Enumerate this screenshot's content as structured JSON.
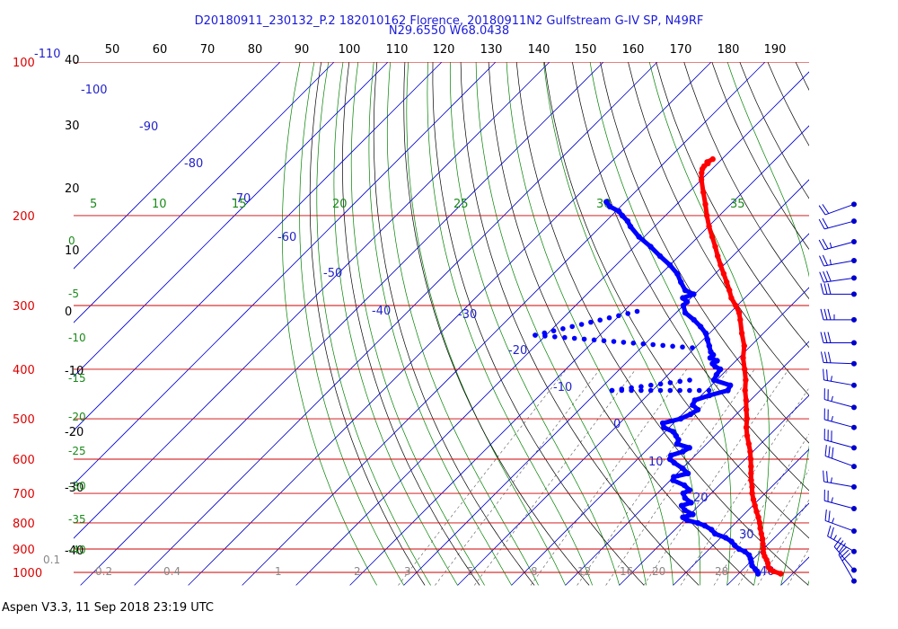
{
  "header": {
    "title_line1": "D20180911_230132_P.2 182010162 Florence, 20180911N2 Gulfstream G-IV SP, N49RF",
    "title_line2": "N29.6550 W68.0438"
  },
  "footer": {
    "version_text": "Aspen V3.3, 11 Sep 2018  23:19 UTC"
  },
  "colors": {
    "temperature": "#ff0000",
    "dewpoint": "#0000ff",
    "isobar": "#cc0000",
    "isotherm": "#0000cc",
    "dry_adiabat": "#000000",
    "moist_adiabat": "#008000",
    "mixing_ratio": "#555555"
  },
  "chart_data": {
    "type": "line",
    "chart_kind": "skew-T log-P",
    "yscale": "log",
    "pressure_range_hpa": [
      100,
      1050
    ],
    "pressure_labels": [
      "100",
      "200",
      "300",
      "400",
      "500",
      "600",
      "700",
      "800",
      "900",
      "1000"
    ],
    "pressure_levels": [
      100,
      200,
      300,
      400,
      500,
      600,
      700,
      800,
      900,
      1000
    ],
    "km_labels": [
      "-110",
      "40"
    ],
    "top_scale_labels": [
      "50",
      "60",
      "70",
      "80",
      "90",
      "100",
      "110",
      "120",
      "130",
      "140",
      "150",
      "160",
      "170",
      "180",
      "190"
    ],
    "left_scale_labels": [
      "30",
      "20",
      "10",
      "0",
      "-10",
      "-20",
      "-30",
      "-40"
    ],
    "isotherm_labels": [
      "-100",
      "-90",
      "-80",
      "-70",
      "-60",
      "-50",
      "-40",
      "-30",
      "-20",
      "-10",
      "0",
      "10",
      "20",
      "30",
      "40"
    ],
    "theta_e_labels": [
      "5",
      "10",
      "15",
      "20",
      "25",
      "30",
      "35"
    ],
    "moist_left_labels": [
      "0",
      "-5",
      "-10",
      "-15",
      "-20",
      "-25",
      "-30",
      "-35",
      "-40"
    ],
    "mixing_ratio_labels": [
      "0.1",
      "0.2",
      "0.4",
      "1",
      "2",
      "3",
      "5",
      "8",
      "12",
      "16",
      "20",
      "28"
    ],
    "grid": true,
    "series": [
      {
        "key": "temperature",
        "points": [
          [
            1006,
            27.8
          ],
          [
            995,
            26.0
          ],
          [
            985,
            25.0
          ],
          [
            975,
            24.2
          ],
          [
            960,
            23.5
          ],
          [
            945,
            22.6
          ],
          [
            930,
            21.6
          ],
          [
            915,
            20.7
          ],
          [
            900,
            20.0
          ],
          [
            880,
            19.0
          ],
          [
            860,
            18.0
          ],
          [
            840,
            16.8
          ],
          [
            820,
            15.6
          ],
          [
            800,
            14.5
          ],
          [
            780,
            13.2
          ],
          [
            760,
            11.8
          ],
          [
            740,
            10.4
          ],
          [
            720,
            9.0
          ],
          [
            700,
            7.6
          ],
          [
            680,
            6.4
          ],
          [
            660,
            5.0
          ],
          [
            640,
            3.7
          ],
          [
            620,
            2.4
          ],
          [
            600,
            1.0
          ],
          [
            580,
            -0.5
          ],
          [
            560,
            -2.2
          ],
          [
            540,
            -4.0
          ],
          [
            520,
            -5.7
          ],
          [
            500,
            -7.2
          ],
          [
            480,
            -9.0
          ],
          [
            460,
            -10.8
          ],
          [
            440,
            -12.8
          ],
          [
            420,
            -14.6
          ],
          [
            400,
            -16.8
          ],
          [
            380,
            -19.2
          ],
          [
            360,
            -21.2
          ],
          [
            340,
            -24.0
          ],
          [
            320,
            -26.8
          ],
          [
            310,
            -28.3
          ],
          [
            300,
            -30.3
          ],
          [
            290,
            -32.5
          ],
          [
            280,
            -34.3
          ],
          [
            270,
            -36.3
          ],
          [
            260,
            -38.4
          ],
          [
            250,
            -40.6
          ],
          [
            240,
            -42.8
          ],
          [
            230,
            -45.0
          ],
          [
            220,
            -47.4
          ],
          [
            210,
            -49.9
          ],
          [
            200,
            -52.3
          ],
          [
            190,
            -54.7
          ],
          [
            180,
            -57.3
          ],
          [
            170,
            -60.0
          ],
          [
            165,
            -61.2
          ],
          [
            162,
            -61.8
          ],
          [
            160,
            -62.0
          ],
          [
            158,
            -61.8
          ],
          [
            157,
            -62.2
          ],
          [
            155,
            -61.7
          ]
        ]
      },
      {
        "key": "dewpoint",
        "points": [
          [
            1006,
            23.6
          ],
          [
            995,
            23.0
          ],
          [
            985,
            22.2
          ],
          [
            970,
            21.0
          ],
          [
            955,
            20.2
          ],
          [
            940,
            19.4
          ],
          [
            925,
            18.5
          ],
          [
            910,
            17.0
          ],
          [
            900,
            15.5
          ],
          [
            885,
            14.0
          ],
          [
            870,
            12.7
          ],
          [
            855,
            10.9
          ],
          [
            840,
            8.2
          ],
          [
            825,
            6.8
          ],
          [
            810,
            4.8
          ],
          [
            800,
            3.0
          ],
          [
            790,
            0.5
          ],
          [
            780,
            -0.8
          ],
          [
            770,
            0.5
          ],
          [
            755,
            -1.8
          ],
          [
            740,
            -3.2
          ],
          [
            730,
            -2.0
          ],
          [
            715,
            -4.0
          ],
          [
            700,
            -5.2
          ],
          [
            690,
            -4.6
          ],
          [
            675,
            -6.5
          ],
          [
            660,
            -9.5
          ],
          [
            650,
            -10.0
          ],
          [
            640,
            -8.0
          ],
          [
            625,
            -10.0
          ],
          [
            610,
            -12.5
          ],
          [
            600,
            -14.0
          ],
          [
            590,
            -14.5
          ],
          [
            580,
            -13.0
          ],
          [
            570,
            -12.5
          ],
          [
            560,
            -15.5
          ],
          [
            550,
            -16.0
          ],
          [
            540,
            -17.2
          ],
          [
            530,
            -18.5
          ],
          [
            520,
            -21.0
          ],
          [
            510,
            -22.0
          ],
          [
            500,
            -19.5
          ],
          [
            490,
            -18.5
          ],
          [
            480,
            -18.0
          ],
          [
            470,
            -19.8
          ],
          [
            460,
            -20.3
          ],
          [
            450,
            -18.5
          ],
          [
            440,
            -16.0
          ],
          [
            430,
            -16.5
          ],
          [
            420,
            -20.5
          ],
          [
            410,
            -21.0
          ],
          [
            400,
            -21.3
          ],
          [
            395,
            -22.8
          ],
          [
            390,
            -23.8
          ],
          [
            385,
            -23.5
          ],
          [
            380,
            -25.3
          ],
          [
            375,
            -25.3
          ],
          [
            370,
            -26.3
          ],
          [
            360,
            -27.7
          ],
          [
            350,
            -29.2
          ],
          [
            340,
            -30.7
          ],
          [
            330,
            -32.9
          ],
          [
            320,
            -35.4
          ],
          [
            310,
            -38.3
          ],
          [
            300,
            -40.0
          ],
          [
            295,
            -40.0
          ],
          [
            290,
            -41.5
          ],
          [
            285,
            -40.2
          ],
          [
            280,
            -42.5
          ],
          [
            270,
            -44.8
          ],
          [
            260,
            -47.0
          ],
          [
            250,
            -50.0
          ],
          [
            240,
            -53.5
          ],
          [
            230,
            -57.0
          ],
          [
            220,
            -61.0
          ],
          [
            210,
            -64.5
          ],
          [
            205,
            -66.0
          ],
          [
            200,
            -68.0
          ],
          [
            196,
            -69.5
          ],
          [
            192,
            -72.0
          ],
          [
            188,
            -73.5
          ]
        ],
        "gaps": [
          {
            "from": [
              308,
              -47.5
            ],
            "to": [
              343,
              -62.0
            ]
          },
          {
            "from": [
              363,
              -30.5
            ],
            "to": [
              343,
              -62.0
            ]
          },
          {
            "from": [
              420,
              -25.0
            ],
            "to": [
              440,
              -37.5
            ]
          },
          {
            "from": [
              440,
              -19.5
            ],
            "to": [
              440,
              -37.5
            ]
          }
        ]
      }
    ],
    "wind_barbs": [
      {
        "p": 190,
        "dir": 250,
        "kt": 20
      },
      {
        "p": 205,
        "dir": 255,
        "kt": 20
      },
      {
        "p": 225,
        "dir": 255,
        "kt": 25
      },
      {
        "p": 245,
        "dir": 260,
        "kt": 25
      },
      {
        "p": 265,
        "dir": 262,
        "kt": 30
      },
      {
        "p": 285,
        "dir": 270,
        "kt": 30
      },
      {
        "p": 320,
        "dir": 270,
        "kt": 35
      },
      {
        "p": 355,
        "dir": 270,
        "kt": 30
      },
      {
        "p": 390,
        "dir": 272,
        "kt": 30
      },
      {
        "p": 430,
        "dir": 280,
        "kt": 25
      },
      {
        "p": 475,
        "dir": 285,
        "kt": 25
      },
      {
        "p": 520,
        "dir": 285,
        "kt": 25
      },
      {
        "p": 570,
        "dir": 285,
        "kt": 30
      },
      {
        "p": 620,
        "dir": 290,
        "kt": 30
      },
      {
        "p": 680,
        "dir": 280,
        "kt": 25
      },
      {
        "p": 750,
        "dir": 285,
        "kt": 25
      },
      {
        "p": 830,
        "dir": 290,
        "kt": 25
      },
      {
        "p": 910,
        "dir": 300,
        "kt": 25
      },
      {
        "p": 990,
        "dir": 320,
        "kt": 30
      },
      {
        "p": 1040,
        "dir": 330,
        "kt": 30
      }
    ]
  }
}
